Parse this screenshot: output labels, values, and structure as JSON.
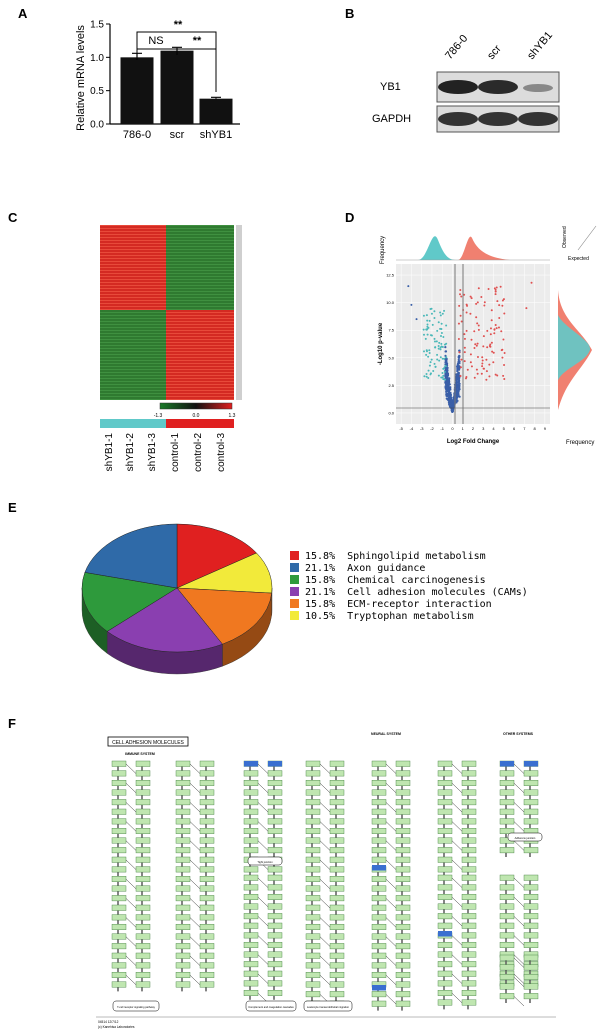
{
  "panels": {
    "a": "A",
    "b": "B",
    "c": "C",
    "d": "D",
    "e": "E",
    "f": "F"
  },
  "colors": {
    "red": "#e02020",
    "green": "#2e9a3c",
    "blue": "#2f6aa8",
    "purple": "#8a3fb0",
    "orange": "#f07820",
    "yellow": "#f2ea3a",
    "teal": "#60c9c9"
  },
  "chart_data": [
    {
      "type": "bar",
      "panel": "A",
      "categories": [
        "786-0",
        "scr",
        "shYB1"
      ],
      "values": [
        1.0,
        1.1,
        0.38
      ],
      "errors": [
        0.06,
        0.05,
        0.02
      ],
      "ylabel": "Relative mRNA levels",
      "ylim": [
        0,
        1.5
      ],
      "yticks": [
        "0.0",
        "0.5",
        "1.0",
        "1.5"
      ],
      "annotations": [
        "NS",
        "**",
        "**"
      ]
    },
    {
      "type": "pie",
      "panel": "E",
      "slices": [
        {
          "label": "Sphingolipid metabolism",
          "percent": "15.8%",
          "value": 15.8,
          "color": "#e02020"
        },
        {
          "label": "Axon guidance",
          "percent": "21.1%",
          "value": 21.1,
          "color": "#2f6aa8"
        },
        {
          "label": "Chemical carcinogenesis",
          "percent": "15.8%",
          "value": 15.8,
          "color": "#2e9a3c"
        },
        {
          "label": "Cell adhesion molecules (CAMs)",
          "percent": "21.1%",
          "value": 21.1,
          "color": "#8a3fb0"
        },
        {
          "label": "ECM-receptor interaction",
          "percent": "15.8%",
          "value": 15.8,
          "color": "#f07820"
        },
        {
          "label": "Tryptophan metabolism",
          "percent": "10.5%",
          "value": 10.5,
          "color": "#f2ea3a"
        }
      ]
    },
    {
      "type": "scatter",
      "panel": "D",
      "xlabel": "Log2 Fold Change",
      "ylabel": "-Log10 p-value",
      "xticks": [
        "-5",
        "-4",
        "-3",
        "-2",
        "-1",
        "0",
        "1",
        "2",
        "3",
        "4",
        "5",
        "6",
        "7",
        "8",
        "9"
      ],
      "yticks": [
        "0.0",
        "2.5",
        "5.0",
        "7.5",
        "10.0",
        "12.5"
      ],
      "top_label": "Frequency",
      "right_label": "Frequency",
      "qq_labels": [
        "Observed",
        "Expected"
      ]
    },
    {
      "type": "heatmap",
      "panel": "C",
      "samples": [
        "shYB1-1",
        "shYB1-2",
        "shYB1-3",
        "control-1",
        "control-2",
        "control-3"
      ],
      "scale": [
        "-1.3",
        "0.0",
        "1.3"
      ]
    }
  ],
  "blot": {
    "lanes": [
      "786-0",
      "scr",
      "shYB1"
    ],
    "rows": [
      "YB1",
      "GAPDH"
    ]
  },
  "pathway": {
    "title": "CELL ADHESION MOLECULES",
    "sections": [
      "IMMUNE SYSTEM",
      "NEURAL SYSTEM",
      "OTHER SYSTEMS"
    ],
    "notes": [
      "T-cell receptor signaling pathway",
      "Leukocyte transendothelial migration",
      "Complement and coagulation cascades",
      "Tight junction",
      "Adherens junction"
    ],
    "footer": [
      "04514 12/7/12",
      "(c) Kanehisa Laboratories"
    ]
  }
}
